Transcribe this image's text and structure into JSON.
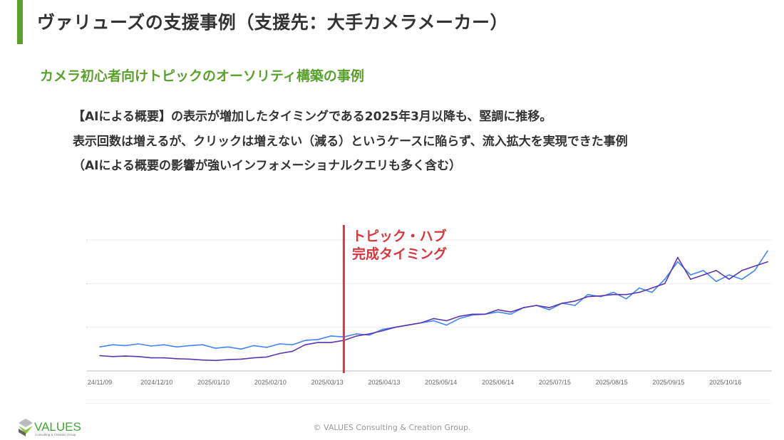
{
  "slide": {
    "title": "ヴァリューズの支援事例（支援先：大手カメラメーカー）",
    "subtitle": "カメラ初心者向けトピックのオーソリティ構築の事例",
    "body_lines": [
      "【AIによる概要】の表示が増加したタイミングである2025年3月以降も、堅調に推移。",
      "表示回数は増えるが、クリックは増えない（減る）というケースに陥らず、流入拡大を実現できた事例",
      "（AIによる概要の影響が強いインフォメーショナルクエリも多く含む）"
    ],
    "accent_color": "#5aa02c"
  },
  "chart_data": {
    "type": "line",
    "title": "",
    "xlabel": "",
    "ylabel": "",
    "ylim": [
      0,
      3
    ],
    "y_ticks": [
      0,
      1,
      2,
      3
    ],
    "y_tick_labels_visible": false,
    "grid": true,
    "x_range": [
      "2024-11-09",
      "2025-11-08"
    ],
    "x_tick_labels": [
      "24/11/09",
      "2024/12/10",
      "2025/01/10",
      "2025/02/10",
      "2025/03/13",
      "2025/04/13",
      "2025/05/14",
      "2025/06/14",
      "2025/07/15",
      "2025/08/15",
      "2025/09/15",
      "2025/10/16"
    ],
    "x_tick_dates": [
      "2024-11-09",
      "2024-12-10",
      "2025-01-10",
      "2025-02-10",
      "2025-03-13",
      "2025-04-13",
      "2025-05-14",
      "2025-06-14",
      "2025-07-15",
      "2025-08-15",
      "2025-09-15",
      "2025-10-16"
    ],
    "x": [
      "2024-11-09",
      "2024-11-16",
      "2024-11-23",
      "2024-11-30",
      "2024-12-07",
      "2024-12-14",
      "2024-12-21",
      "2024-12-28",
      "2025-01-04",
      "2025-01-11",
      "2025-01-18",
      "2025-01-25",
      "2025-02-01",
      "2025-02-08",
      "2025-02-15",
      "2025-02-22",
      "2025-03-01",
      "2025-03-08",
      "2025-03-15",
      "2025-03-22",
      "2025-03-29",
      "2025-04-05",
      "2025-04-12",
      "2025-04-19",
      "2025-04-26",
      "2025-05-03",
      "2025-05-10",
      "2025-05-17",
      "2025-05-24",
      "2025-05-31",
      "2025-06-07",
      "2025-06-14",
      "2025-06-21",
      "2025-06-28",
      "2025-07-05",
      "2025-07-12",
      "2025-07-19",
      "2025-07-26",
      "2025-08-02",
      "2025-08-09",
      "2025-08-16",
      "2025-08-23",
      "2025-08-30",
      "2025-09-06",
      "2025-09-13",
      "2025-09-20",
      "2025-09-27",
      "2025-10-04",
      "2025-10-11",
      "2025-10-18",
      "2025-10-25",
      "2025-11-01",
      "2025-11-08"
    ],
    "series": [
      {
        "color": "#4285f4",
        "values": [
          0.55,
          0.6,
          0.58,
          0.62,
          0.57,
          0.6,
          0.55,
          0.58,
          0.6,
          0.52,
          0.55,
          0.5,
          0.58,
          0.54,
          0.62,
          0.6,
          0.7,
          0.72,
          0.8,
          0.78,
          0.85,
          0.82,
          0.95,
          1.0,
          1.05,
          1.1,
          1.15,
          1.05,
          1.2,
          1.28,
          1.3,
          1.35,
          1.3,
          1.45,
          1.5,
          1.4,
          1.55,
          1.5,
          1.75,
          1.7,
          1.8,
          1.65,
          1.9,
          1.8,
          2.1,
          2.5,
          2.2,
          2.3,
          2.05,
          2.2,
          2.1,
          2.3,
          2.75
        ]
      },
      {
        "color": "#5e35b1",
        "values": [
          0.35,
          0.33,
          0.34,
          0.33,
          0.3,
          0.3,
          0.28,
          0.27,
          0.25,
          0.24,
          0.26,
          0.27,
          0.3,
          0.32,
          0.4,
          0.45,
          0.6,
          0.65,
          0.65,
          0.7,
          0.8,
          0.85,
          0.92,
          1.0,
          1.05,
          1.1,
          1.2,
          1.15,
          1.25,
          1.3,
          1.3,
          1.4,
          1.35,
          1.45,
          1.5,
          1.45,
          1.55,
          1.6,
          1.7,
          1.72,
          1.75,
          1.75,
          1.8,
          1.9,
          2.0,
          2.6,
          2.1,
          2.2,
          2.3,
          2.1,
          2.3,
          2.4,
          2.5
        ]
      }
    ],
    "annotation": {
      "date": "2025-03-22",
      "color": "#d9363e",
      "lines": [
        "トピック・ハブ",
        "完成タイミング"
      ]
    }
  },
  "footer": {
    "logo_text": "VALUES",
    "logo_subtext": "Consulting & Creation Group",
    "copyright": "© VALUES Consulting & Creation Group."
  }
}
